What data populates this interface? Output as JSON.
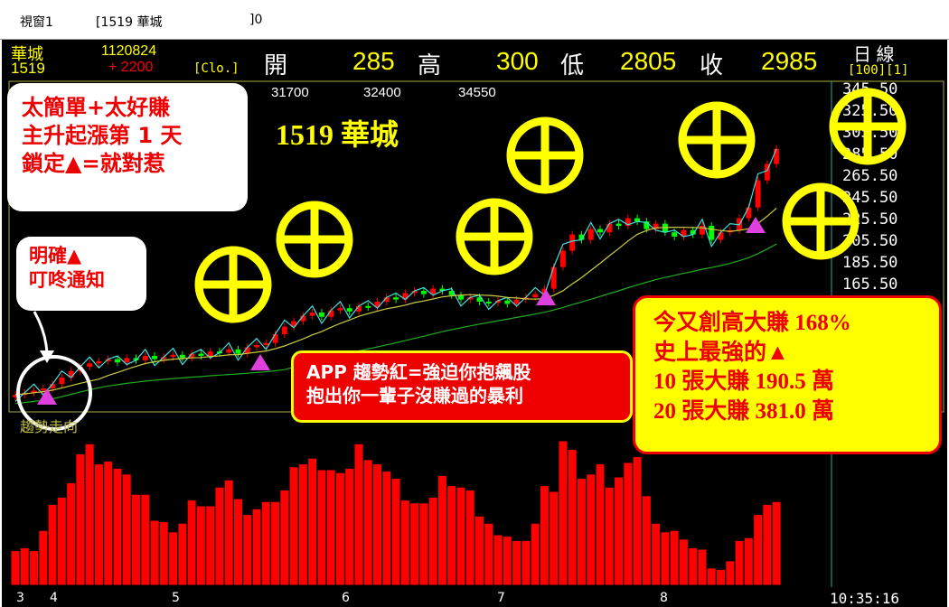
{
  "window": {
    "title": "視窗1",
    "symbol_field": "[1519  華城",
    "suffix": "]0"
  },
  "header": {
    "name": "華城",
    "code": "1519",
    "date": "1120824",
    "change": "+ 2200",
    "mode": "[Clo.]",
    "open_label": "開",
    "open": "285",
    "high_label": "高",
    "high": "300",
    "low_label": "低",
    "low": "2805",
    "close_label": "收",
    "close": "2985",
    "period": "日  線",
    "params": "[100][1]"
  },
  "price_labels": [
    "31700",
    "32400",
    "34550"
  ],
  "y_axis_ticks": [
    "345.50",
    "325.50",
    "305.50",
    "285.50",
    "265.50",
    "245.50",
    "225.50",
    "205.50",
    "185.50",
    "165.50"
  ],
  "chart_data": {
    "type": "candlestick",
    "y_range": [
      165.5,
      345.5
    ],
    "closes": [
      62,
      64,
      66,
      68,
      72,
      78,
      84,
      88,
      91,
      93,
      95,
      92,
      96,
      94,
      98,
      95,
      97,
      99,
      96,
      100,
      98,
      102,
      101,
      104,
      100,
      106,
      108,
      110,
      118,
      125,
      130,
      135,
      138,
      134,
      140,
      142,
      139,
      144,
      143,
      148,
      152,
      150,
      156,
      158,
      155,
      160,
      158,
      154,
      150,
      152,
      148,
      147,
      149,
      146,
      150,
      152,
      155,
      160,
      180,
      195,
      210,
      205,
      215,
      212,
      220,
      218,
      225,
      222,
      215,
      220,
      212,
      208,
      214,
      210,
      218,
      205,
      212,
      214,
      225,
      235,
      260,
      275,
      289
    ],
    "volume_panel_label": "趨勢走向",
    "volume": [
      24,
      26,
      24,
      38,
      56,
      61,
      71,
      91,
      98,
      84,
      86,
      81,
      77,
      63,
      63,
      45,
      44,
      37,
      43,
      59,
      55,
      55,
      68,
      73,
      60,
      49,
      53,
      58,
      58,
      66,
      82,
      84,
      88,
      80,
      80,
      78,
      81,
      98,
      87,
      84,
      79,
      74,
      59,
      57,
      57,
      61,
      76,
      69,
      68,
      66,
      48,
      43,
      35,
      34,
      31,
      31,
      43,
      69,
      65,
      100,
      94,
      74,
      77,
      84,
      68,
      75,
      85,
      89,
      62,
      43,
      37,
      38,
      32,
      26,
      25,
      12,
      11,
      17,
      31,
      33,
      49,
      56,
      58
    ],
    "x_labels": [
      "3",
      "4",
      "5",
      "6",
      "7",
      "8"
    ],
    "colors": {
      "up": "#ff0000",
      "down": "#00ff00",
      "line": "#40e0e0",
      "volume": "#ff0000"
    }
  },
  "time": "10:35:16",
  "overlays": {
    "stock_title": "1519 華城",
    "promo_box": [
      "太簡單+太好賺",
      "主升起漲第 1 天",
      "鎖定▲=就對惹"
    ],
    "notify_box": [
      "明確▲",
      "叮咚通知"
    ],
    "app_box": [
      "APP 趨勢紅=強迫你抱飆股",
      "抱出你一輩子沒賺過的暴利"
    ],
    "profit_box": [
      "今又創高大賺 168%",
      "史上最強的▲",
      "10 張大賺 190.5 萬",
      "20 張大賺 381.0 萬"
    ]
  }
}
